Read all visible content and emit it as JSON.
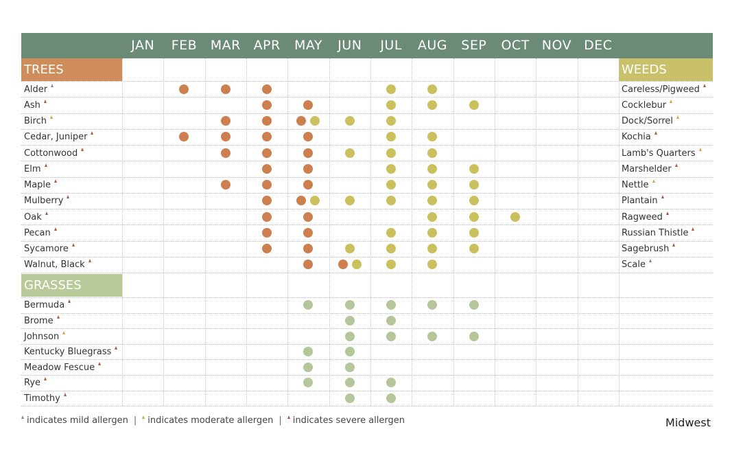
{
  "months": [
    "JAN",
    "FEB",
    "MAR",
    "APR",
    "MAY",
    "JUN",
    "JUL",
    "AUG",
    "SEP",
    "OCT",
    "NOV",
    "DEC"
  ],
  "colors": {
    "header_bar": "#6b8a77",
    "trees": "#cf8d5c",
    "grasses": "#b9c99a",
    "weeds": "#c9c06a",
    "dot_trees": "#cd7f4f",
    "dot_weeds": "#cbc05e",
    "dot_grasses": "#b5c69a",
    "mild": "#8b7fbf",
    "moderate": "#d8a24a",
    "severe": "#b05a3c"
  },
  "sections": {
    "trees": {
      "label": "TREES"
    },
    "grasses": {
      "label": "GRASSES"
    },
    "weeds": {
      "label": "WEEDS"
    }
  },
  "tree_rows": [
    {
      "name": "Alder",
      "allergen": "mild",
      "tree_months": [
        2,
        3,
        4
      ],
      "weed_months": [
        7,
        8
      ]
    },
    {
      "name": "Ash",
      "allergen": "severe",
      "tree_months": [
        4,
        5
      ],
      "weed_months": [
        7,
        8,
        9
      ]
    },
    {
      "name": "Birch",
      "allergen": "moderate",
      "tree_months": [
        3,
        4,
        5
      ],
      "weed_months": [
        5,
        6,
        7
      ]
    },
    {
      "name": "Cedar, Juniper",
      "allergen": "severe",
      "tree_months": [
        2,
        3,
        4,
        5
      ],
      "weed_months": [
        7,
        8
      ]
    },
    {
      "name": "Cottonwood",
      "allergen": "severe",
      "tree_months": [
        3,
        4,
        5
      ],
      "weed_months": [
        6,
        7,
        8
      ]
    },
    {
      "name": "Elm",
      "allergen": "severe",
      "tree_months": [
        4,
        5
      ],
      "weed_months": [
        7,
        8,
        9
      ]
    },
    {
      "name": "Maple",
      "allergen": "severe",
      "tree_months": [
        3,
        4,
        5
      ],
      "weed_months": [
        7,
        8,
        9
      ]
    },
    {
      "name": "Mulberry",
      "allergen": "severe",
      "tree_months": [
        4,
        5
      ],
      "weed_months": [
        5,
        6,
        7,
        8,
        9
      ]
    },
    {
      "name": "Oak",
      "allergen": "severe",
      "tree_months": [
        4,
        5
      ],
      "weed_months": [
        8,
        9,
        10
      ]
    },
    {
      "name": "Pecan",
      "allergen": "severe",
      "tree_months": [
        4,
        5
      ],
      "weed_months": [
        7,
        8,
        9
      ]
    },
    {
      "name": "Sycamore",
      "allergen": "severe",
      "tree_months": [
        4,
        5
      ],
      "weed_months": [
        6,
        7,
        8,
        9
      ]
    },
    {
      "name": "Walnut, Black",
      "allergen": "severe",
      "tree_months": [
        5,
        6
      ],
      "weed_months": [
        6,
        7,
        8
      ]
    }
  ],
  "weeds": [
    {
      "name": "Careless/Pigweed",
      "allergen": "severe"
    },
    {
      "name": "Cocklebur",
      "allergen": "moderate"
    },
    {
      "name": "Dock/Sorrel",
      "allergen": "moderate"
    },
    {
      "name": "Kochia",
      "allergen": "severe"
    },
    {
      "name": "Lamb's Quarters",
      "allergen": "moderate"
    },
    {
      "name": "Marshelder",
      "allergen": "severe"
    },
    {
      "name": "Nettle",
      "allergen": "moderate"
    },
    {
      "name": "Plantain",
      "allergen": "severe"
    },
    {
      "name": "Ragweed",
      "allergen": "severe"
    },
    {
      "name": "Russian Thistle",
      "allergen": "severe"
    },
    {
      "name": "Sagebrush",
      "allergen": "severe"
    },
    {
      "name": "Scale",
      "allergen": "mild"
    }
  ],
  "grasses": [
    {
      "name": "Bermuda",
      "allergen": "severe",
      "months": [
        5,
        6,
        7,
        8,
        9
      ]
    },
    {
      "name": "Brome",
      "allergen": "severe",
      "months": [
        6,
        7
      ]
    },
    {
      "name": "Johnson",
      "allergen": "moderate",
      "months": [
        6,
        7,
        8,
        9
      ]
    },
    {
      "name": "Kentucky Bluegrass",
      "allergen": "severe",
      "months": [
        5,
        6
      ]
    },
    {
      "name": "Meadow Fescue",
      "allergen": "severe",
      "months": [
        5,
        6
      ]
    },
    {
      "name": "Rye",
      "allergen": "severe",
      "months": [
        5,
        6,
        7
      ]
    },
    {
      "name": "Timothy",
      "allergen": "severe",
      "months": [
        6,
        7
      ]
    }
  ],
  "legend": {
    "mild": "indicates mild allergen",
    "moderate": "indicates moderate allergen",
    "severe": "indicates severe allergen",
    "separator": "|"
  },
  "region": "Midwest"
}
